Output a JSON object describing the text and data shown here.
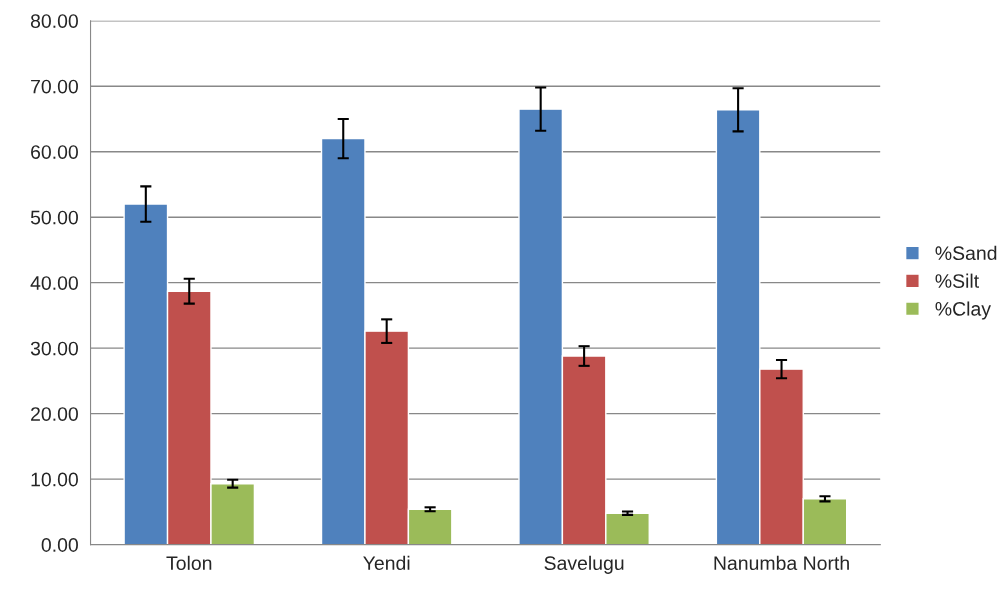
{
  "chart_data": {
    "type": "bar",
    "categories": [
      "Tolon",
      "Yendi",
      "Savelugu",
      "Nanumba North"
    ],
    "series": [
      {
        "name": "%Sand",
        "color": "#4f81bd",
        "values": [
          52.0,
          62.0,
          66.5,
          66.4
        ],
        "errors": [
          2.7,
          3.0,
          3.3,
          3.3
        ]
      },
      {
        "name": "%Silt",
        "color": "#c0504d",
        "values": [
          38.7,
          32.6,
          28.8,
          26.8
        ],
        "errors": [
          1.9,
          1.8,
          1.5,
          1.4
        ]
      },
      {
        "name": "%Clay",
        "color": "#9bbb59",
        "values": [
          9.3,
          5.4,
          4.8,
          7.0
        ],
        "errors": [
          0.6,
          0.3,
          0.25,
          0.4
        ]
      }
    ],
    "ylim": [
      0,
      80
    ],
    "yticks": [
      {
        "value": 0,
        "label": "0.00"
      },
      {
        "value": 10,
        "label": "10.00"
      },
      {
        "value": 20,
        "label": "20.00"
      },
      {
        "value": 30,
        "label": "30.00"
      },
      {
        "value": 40,
        "label": "40.00"
      },
      {
        "value": 50,
        "label": "50.00"
      },
      {
        "value": 60,
        "label": "60.00"
      },
      {
        "value": 70,
        "label": "70.00"
      },
      {
        "value": 80,
        "label": "80.00"
      }
    ],
    "grid": "y",
    "legend": "right"
  }
}
